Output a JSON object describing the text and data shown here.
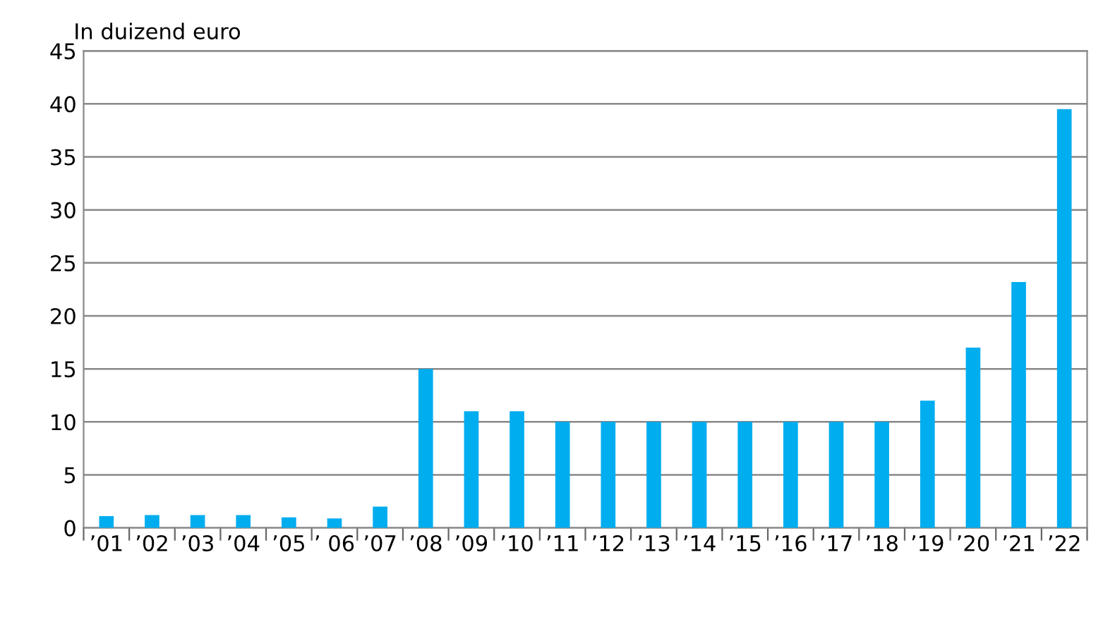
{
  "chart_data": {
    "type": "bar",
    "ylabel": "In duizend euro",
    "categories": [
      "’01",
      "’02",
      "’03",
      "’04",
      "’05",
      "’ 06",
      "’07",
      "’08",
      "’09",
      "’10",
      "’11",
      "’12",
      "’13",
      "’14",
      "’15",
      "’16",
      "’17",
      "’18",
      "’19",
      "’20",
      "’21",
      "’22"
    ],
    "values": [
      1.1,
      1.2,
      1.2,
      1.2,
      1.0,
      0.9,
      2.0,
      15,
      11,
      11,
      10,
      10,
      10,
      10,
      10,
      10,
      10,
      10,
      12,
      17,
      23.2,
      39.5
    ],
    "color": "#00adef",
    "ylim": [
      0,
      45
    ],
    "yticks": [
      0,
      5,
      10,
      15,
      20,
      25,
      30,
      35,
      40,
      45
    ],
    "grid": "y"
  }
}
